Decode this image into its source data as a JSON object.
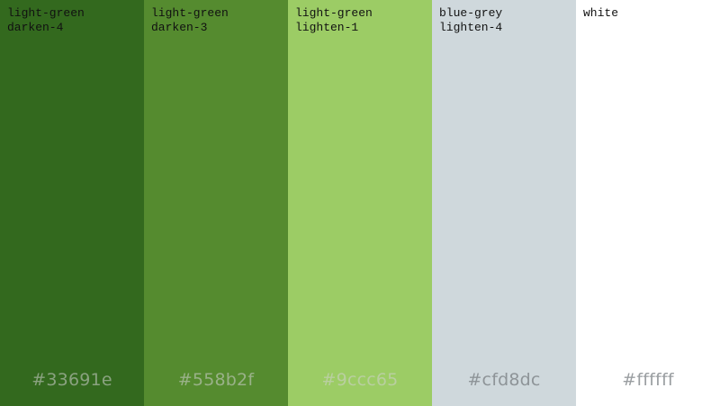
{
  "swatches": [
    {
      "name": "light-green\ndarken-4",
      "hex": "#33691e",
      "color": "#33691e"
    },
    {
      "name": "light-green\ndarken-3",
      "hex": "#558b2f",
      "color": "#558b2f"
    },
    {
      "name": "light-green\nlighten-1",
      "hex": "#9ccc65",
      "color": "#9ccc65"
    },
    {
      "name": "blue-grey\nlighten-4",
      "hex": "#cfd8dc",
      "color": "#cfd8dc"
    },
    {
      "name": "white",
      "hex": "#ffffff",
      "color": "#ffffff"
    }
  ]
}
